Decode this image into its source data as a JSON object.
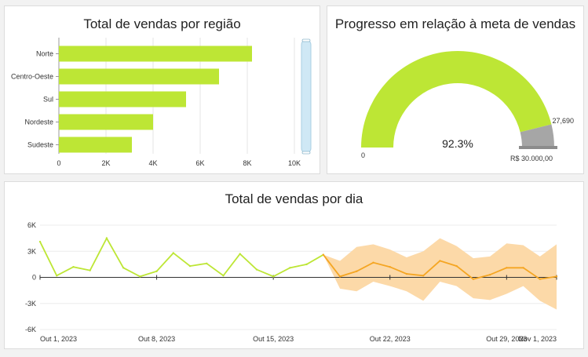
{
  "panels": {
    "region": {
      "title": "Total de vendas por região"
    },
    "goal": {
      "title": "Progresso em relação à meta de vendas"
    },
    "daily": {
      "title": "Total de vendas por dia"
    }
  },
  "colors": {
    "bar": "#bde635",
    "gauge_fill": "#bde635",
    "gauge_rest": "#a6a6a6",
    "line": "#bde635",
    "forecast_line": "#f5a623",
    "forecast_band": "#fcd9a8",
    "scrollbar": "#cfe8f5"
  },
  "chart_data": [
    {
      "type": "bar",
      "orientation": "horizontal",
      "categories": [
        "Norte",
        "Centro-Oeste",
        "Sul",
        "Nordeste",
        "Sudeste"
      ],
      "values": [
        8200,
        6800,
        5400,
        4000,
        3100
      ],
      "xlim": [
        0,
        10000
      ],
      "xticks": [
        "0",
        "2K",
        "4K",
        "6K",
        "8K",
        "10K"
      ],
      "grid": true
    },
    {
      "type": "gauge",
      "value": 27690,
      "value_label": "27,690",
      "target_label": "R$ 30.000,00",
      "min_label": "0",
      "percent_label": "92.3%",
      "fraction": 0.923
    },
    {
      "type": "line",
      "x": [
        "Out 1",
        "Out 2",
        "Out 3",
        "Out 4",
        "Out 5",
        "Out 6",
        "Out 7",
        "Out 8",
        "Out 9",
        "Out 10",
        "Out 11",
        "Out 12",
        "Out 13",
        "Out 14",
        "Out 15",
        "Out 16",
        "Out 17",
        "Out 18",
        "Out 19",
        "Out 20",
        "Out 21",
        "Out 22",
        "Out 23",
        "Out 24",
        "Out 25",
        "Out 26",
        "Out 27",
        "Out 28",
        "Out 29",
        "Out 30",
        "Out 31",
        "Nov 1"
      ],
      "actual": [
        4100,
        200,
        1200,
        800,
        4500,
        1100,
        100,
        700,
        2800,
        1300,
        1600,
        200,
        2700,
        900,
        100,
        1100,
        1500,
        2600
      ],
      "forecast": [
        2600,
        100,
        700,
        1700,
        1200,
        400,
        200,
        1900,
        1300,
        -200,
        300,
        1100,
        1100,
        -200,
        100
      ],
      "forecast_lower": [
        2600,
        -1300,
        -1600,
        -500,
        -1000,
        -1600,
        -2700,
        -500,
        -1000,
        -2400,
        -2600,
        -1900,
        -1000,
        -2700,
        -3700
      ],
      "forecast_upper": [
        2600,
        1900,
        3500,
        3800,
        3200,
        2300,
        3000,
        4500,
        3600,
        2200,
        2400,
        3900,
        3700,
        2400,
        3800
      ],
      "ylim": [
        -6000,
        6000
      ],
      "yticks": [
        "6K",
        "3K",
        "0",
        "-3K",
        "-6K"
      ],
      "xticks": [
        "Out 1, 2023",
        "Out 8, 2023",
        "Out 15, 2023",
        "Out 22, 2023",
        "Out 29, 2023",
        "Nov 1, 2023"
      ]
    }
  ]
}
